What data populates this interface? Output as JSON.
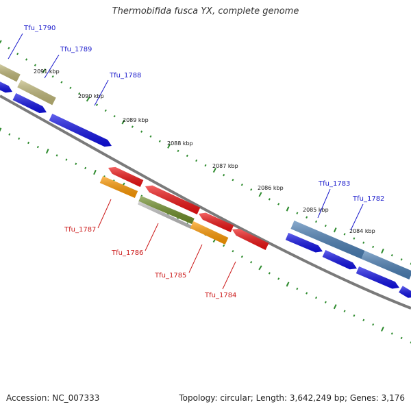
{
  "title": "Thermobifida fusca YX, complete genome",
  "accession": "Accession: NC_007333",
  "summary": "Topology: circular; Length: 3,642,249 bp; Genes: 3,176",
  "colors": {
    "backbone": "#7a7a7a",
    "tick": "#2e8b2e",
    "forward_label": "#1a1acc",
    "reverse_label": "#cc1a1a",
    "cds_blue": "#1010e6",
    "cds_red": "#ee1010",
    "cds_orange": "#ff9900",
    "cds_olive": "#c0b878",
    "cds_green": "#6e8e28",
    "cds_gray": "#bdbdbd",
    "cds_steel": "#4a7fb5"
  },
  "ruler": [
    {
      "label": "2091 kbp"
    },
    {
      "label": "2090 kbp"
    },
    {
      "label": "2089 kbp"
    },
    {
      "label": "2088 kbp"
    },
    {
      "label": "2087 kbp"
    },
    {
      "label": "2086 kbp"
    },
    {
      "label": "2085 kbp"
    },
    {
      "label": "2084 kbp"
    }
  ],
  "forward_genes": [
    {
      "name": "Tfu_1790"
    },
    {
      "name": "Tfu_1789"
    },
    {
      "name": "Tfu_1788"
    },
    {
      "name": "Tfu_1783"
    },
    {
      "name": "Tfu_1782"
    }
  ],
  "reverse_genes": [
    {
      "name": "Tfu_1787"
    },
    {
      "name": "Tfu_1786"
    },
    {
      "name": "Tfu_1785"
    },
    {
      "name": "Tfu_1784"
    }
  ]
}
